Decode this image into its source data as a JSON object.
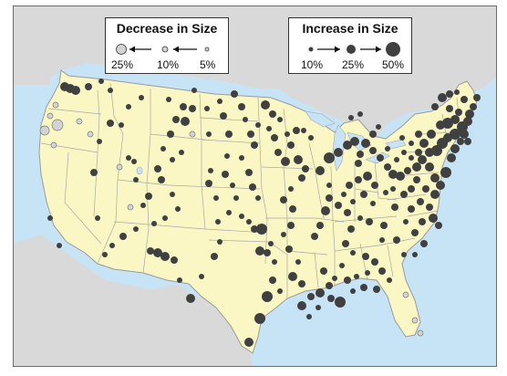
{
  "legend": {
    "decrease": {
      "title": "Decrease in Size",
      "labels": [
        "25%",
        "10%",
        "5%"
      ]
    },
    "increase": {
      "title": "Increase in Size",
      "labels": [
        "10%",
        "25%",
        "50%"
      ]
    }
  },
  "colors": {
    "ocean": "#c7e4f7",
    "us_land": "#fbf7c5",
    "neighbor_land": "#d9d9d9",
    "state_border": "#a8a8a8",
    "lake": "#c7e4f7",
    "increase_dot": "#404040",
    "decrease_dot": "#d3d3d3"
  }
}
